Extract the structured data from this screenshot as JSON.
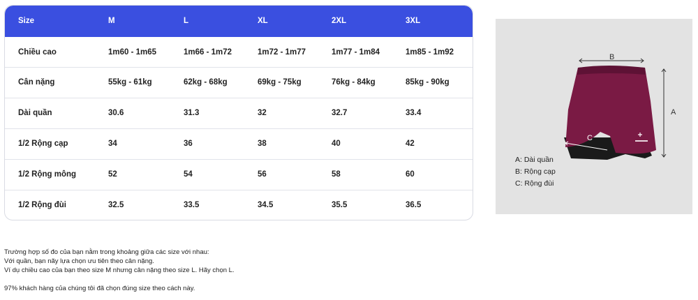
{
  "table": {
    "headers": [
      "Size",
      "M",
      "L",
      "XL",
      "2XL",
      "3XL"
    ],
    "rows": [
      {
        "label": "Chiều cao",
        "cells": [
          "1m60 - 1m65",
          "1m66 - 1m72",
          "1m72 - 1m77",
          "1m77 - 1m84",
          "1m85 - 1m92"
        ]
      },
      {
        "label": "Cân nặng",
        "cells": [
          "55kg - 61kg",
          "62kg - 68kg",
          "69kg - 75kg",
          "76kg - 84kg",
          "85kg - 90kg"
        ]
      },
      {
        "label": "Dài quần",
        "cells": [
          "30.6",
          "31.3",
          "32",
          "32.7",
          "33.4"
        ]
      },
      {
        "label": "1/2 Rộng cạp",
        "cells": [
          "34",
          "36",
          "38",
          "40",
          "42"
        ]
      },
      {
        "label": "1/2 Rộng mông",
        "cells": [
          "52",
          "54",
          "56",
          "58",
          "60"
        ]
      },
      {
        "label": "1/2 Rộng đùi",
        "cells": [
          "32.5",
          "33.5",
          "34.5",
          "35.5",
          "36.5"
        ]
      }
    ]
  },
  "illustration": {
    "label_b": "B",
    "label_a": "A",
    "label_c": "C",
    "legend": [
      "A: Dài quần",
      "B: Rộng cạp",
      "C: Rộng đùi"
    ],
    "short_color": "#7a1a44",
    "liner_color": "#1a1a1a"
  },
  "notes": {
    "lines": [
      "Trường hợp số đo của bạn nằm trong khoảng giữa các size với nhau:",
      "Với quần, bạn nãy lựa chọn ưu tiên theo cân nặng.",
      "Ví dụ chiều cao của bạn theo size M nhưng cân nặng theo size L. Hãy chọn L."
    ],
    "footnote": "97% khách hàng của chúng tôi đã chọn đúng size theo cách này."
  },
  "colors": {
    "header_bg": "#3a4fe0",
    "border": "#d9dbe3",
    "illustration_bg": "#e3e3e3"
  }
}
